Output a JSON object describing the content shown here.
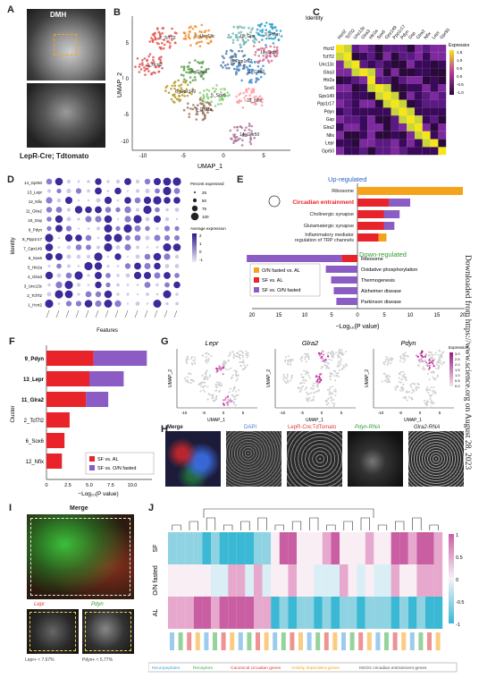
{
  "panels": {
    "A": "A",
    "B": "B",
    "C": "C",
    "D": "D",
    "E": "E",
    "F": "F",
    "G": "G",
    "H": "H",
    "I": "I",
    "J": "J"
  },
  "panel_a": {
    "top_label": "DMH",
    "bottom_label": "LepR-Cre; Tdtomato"
  },
  "panel_b": {
    "xlabel": "UMAP_1",
    "ylabel": "UMAP_2",
    "x_ticks": [
      "-10",
      "-5",
      "0",
      "5"
    ],
    "y_ticks": [
      "5",
      "0",
      "-5",
      "-10"
    ],
    "cluster_labels": [
      "2_Tcf7l2",
      "1_Unc13c",
      "3_Hcrt2",
      "4_Glra3",
      "5_Sox6",
      "6_Gpx149",
      "8_Ppp1r17",
      "9_Pdyn",
      "10_Gpx",
      "11_Glra2",
      "7_Gra1a",
      "12_Nfix",
      "13_Lepr",
      "14_Gpr50"
    ],
    "cluster_colors": [
      "#e8554e",
      "#f28e2b",
      "#e15759",
      "#59a14f",
      "#8cd17d",
      "#b6992d",
      "#4e79a7",
      "#2c9fc9",
      "#76b7b2",
      "#4e8fd1",
      "#9c755f",
      "#ff9da7",
      "#d37295",
      "#b07aa1"
    ]
  },
  "panel_c": {
    "corner_label": "Identity",
    "col_labels": [
      "Hcrt2",
      "Tcf7l2",
      "Unc13c",
      "Glra3",
      "Htr2a",
      "Sox6",
      "Gpx149",
      "Ppp1r17",
      "Pdyn",
      "Gsp",
      "Glra2",
      "Nfix",
      "Lepr",
      "Gpr50"
    ],
    "row_labels": [
      "Hcrt2",
      "Tcf7l2",
      "Unc13c",
      "Glra3",
      "Htr2a",
      "Sox6",
      "Gpx149",
      "Ppp1r17",
      "Pdyn",
      "Gsp",
      "Glra2",
      "Nfix",
      "Lepr",
      "Gpr50"
    ],
    "legend_title": "Expression",
    "legend_ticks": [
      "1.5",
      "1.0",
      "0.5",
      "0.0",
      "-0.5",
      "-1.0"
    ]
  },
  "panel_d": {
    "xlabel": "Features",
    "ylabel": "Identity",
    "rows": [
      "14_Gpr50",
      "13_Lepr",
      "12_Nfix",
      "11_Glra2",
      "10_Gsp",
      "9_Pdyn",
      "8_Ppp1r17",
      "7_Gpx149",
      "6_Sox6",
      "5_Htr2a",
      "4_Glra3",
      "3_Unc13c",
      "2_Tcf7l2",
      "1_Hcrt2"
    ],
    "legend1_title": "Percent expressed",
    "legend1_items": [
      "25",
      "50",
      "75",
      "100"
    ],
    "legend2_title": "Average expression",
    "legend2_ticks": [
      "2",
      "1",
      "0",
      "-1"
    ]
  },
  "panel_e": {
    "up_title": "Up-regulated",
    "down_title": "Down-regulated",
    "xlabel": "−Log₁₀(P value)",
    "x_ticks": [
      "20",
      "15",
      "10",
      "5",
      "0",
      "5",
      "10",
      "15",
      "20"
    ],
    "legend": [
      "O/N fasted vs. AL",
      "SF vs. AL",
      "SF vs. O/N fasted"
    ],
    "colors": {
      "orange": "#f5a31a",
      "red": "#e8232a",
      "purple": "#8a5cc4"
    }
  },
  "panel_f": {
    "ylabel": "Cluster",
    "xlabel": "−Log₁₀(P value)",
    "x_ticks": [
      "0",
      "2.5",
      "5.0",
      "7.5",
      "10.0"
    ],
    "legend": [
      "SF vs. AL",
      "SF vs. O/N fasted"
    ]
  },
  "panel_g": {
    "titles": [
      "Lepr",
      "Glra2",
      "Pdyn"
    ],
    "xlabel": "UMAP_1",
    "ylabel": "UMAP_2",
    "x_ticks": [
      "-10",
      "-5",
      "0",
      "5"
    ],
    "legend_title": "Expression",
    "legend_ticks": [
      "3.0",
      "2.5",
      "2.0",
      "1.5",
      "1.0",
      "0.5",
      "0.0"
    ]
  },
  "panel_h": {
    "labels": [
      "Merge",
      "DAPI",
      "LepR-Cre;TdTomato",
      "Pdyn-RNA",
      "Glra2-RNA"
    ],
    "label_colors": [
      "#ffffff",
      "#4a78d8",
      "#e03b3b",
      "#2f9b2f",
      "#ffffff"
    ]
  },
  "panel_i": {
    "title": "Merge",
    "sub_labels": [
      "Lepr",
      "Pdyn"
    ],
    "footnotes": [
      "Lepr+ ≈ 7.67%",
      "Pdyn+ ≈ 5.77%"
    ]
  },
  "panel_j": {
    "row_labels": [
      "SF",
      "O/N fasted",
      "AL"
    ],
    "legend_ticks": [
      "1",
      "0.5",
      "0",
      "-0.5",
      "-1"
    ],
    "legend_items": [
      "Neuropeptides",
      "Receptors",
      "Canonical circadian genes",
      "Activity dependent genes",
      "KEGG circadian entrainment genes"
    ],
    "legend_colors": [
      "#4aa3df",
      "#3fae49",
      "#e03b3b",
      "#f5a31a",
      "#555555"
    ]
  },
  "side_text": "Downloaded from https://www.science.org on August 28, 2023"
}
